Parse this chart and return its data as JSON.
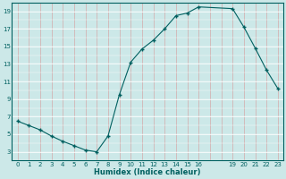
{
  "x": [
    0,
    1,
    2,
    3,
    4,
    5,
    6,
    7,
    8,
    9,
    10,
    11,
    12,
    13,
    14,
    15,
    16,
    19,
    20,
    21,
    22,
    23
  ],
  "y": [
    6.5,
    6.0,
    5.5,
    4.8,
    4.2,
    3.7,
    3.2,
    3.0,
    4.8,
    9.5,
    13.2,
    14.7,
    15.7,
    17.0,
    18.5,
    18.8,
    19.5,
    19.3,
    17.2,
    14.8,
    12.3,
    10.2
  ],
  "bg_color": "#cce8e8",
  "line_color": "#006060",
  "grid_vertical_color": "#d4aaaa",
  "grid_horizontal_color": "#ffffff",
  "xlabel": "Humidex (Indice chaleur)",
  "ylim": [
    2,
    20
  ],
  "xlim": [
    -0.5,
    23.5
  ],
  "yticks": [
    3,
    5,
    7,
    9,
    11,
    13,
    15,
    17,
    19
  ],
  "xticks": [
    0,
    1,
    2,
    3,
    4,
    5,
    6,
    7,
    8,
    9,
    10,
    11,
    12,
    13,
    14,
    15,
    16,
    19,
    20,
    21,
    22,
    23
  ],
  "tick_fontsize": 5.0,
  "xlabel_fontsize": 6.0
}
